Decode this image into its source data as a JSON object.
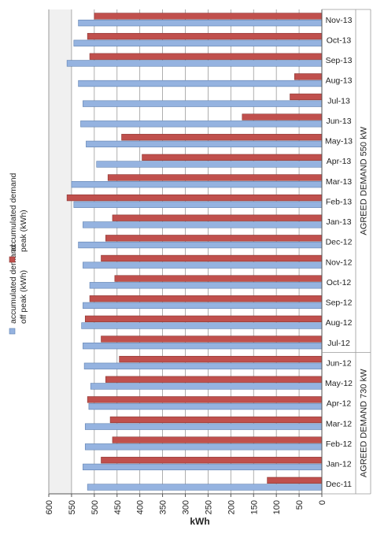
{
  "chart_data": {
    "type": "bar",
    "orientation": "horizontal",
    "x_direction": "reversed",
    "xlabel": "kWh",
    "xlim": [
      0,
      600
    ],
    "xticks": [
      0,
      50,
      100,
      150,
      200,
      250,
      300,
      350,
      400,
      450,
      500,
      550,
      600
    ],
    "grid": "vertical",
    "legend_placement": "left-middle (rotated)",
    "categories": [
      "Nov-13",
      "Oct-13",
      "Sep-13",
      "Aug-13",
      "Jul-13",
      "Jun-13",
      "May-13",
      "Apr-13",
      "Mar-13",
      "Feb-13",
      "Jan-13",
      "Dec-12",
      "Nov-12",
      "Oct-12",
      "Sep-12",
      "Aug-12",
      "Jul-12",
      "Jun-12",
      "May-12",
      "Apr-12",
      "Mar-12",
      "Feb-12",
      "Jan-12",
      "Dec-11"
    ],
    "series": [
      {
        "name": "accumulated demand peak (kWh)",
        "color": "#c0504d",
        "values": [
          500,
          515,
          510,
          60,
          70,
          175,
          440,
          395,
          470,
          560,
          460,
          475,
          485,
          455,
          510,
          520,
          485,
          445,
          475,
          515,
          465,
          460,
          485,
          120
        ]
      },
      {
        "name": "accumulated demand off peak (kWh)",
        "color": "#95b3e0",
        "values": [
          535,
          545,
          560,
          535,
          525,
          530,
          518,
          495,
          550,
          545,
          525,
          535,
          525,
          510,
          525,
          528,
          525,
          522,
          508,
          512,
          520,
          520,
          525,
          515
        ]
      }
    ],
    "groups": [
      {
        "label": "AGREED DEMAND 550 kW",
        "from": "Nov-13",
        "to": "Jul-12"
      },
      {
        "label": "AGREED DEMAND 730 kW",
        "from": "Jun-12",
        "to": "Dec-11"
      }
    ],
    "shaded_band": [
      550,
      600
    ],
    "colors": {
      "shade": "#f0f0f0",
      "grid": "#9a9a9a",
      "axis": "#555555"
    }
  }
}
